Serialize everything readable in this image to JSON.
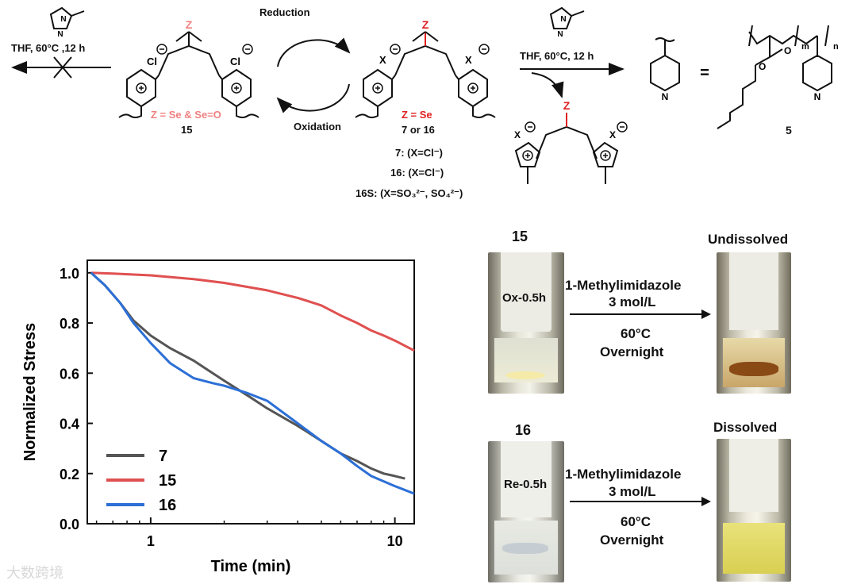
{
  "scheme": {
    "top_left_cond": "THF, 60°C ,12 h",
    "top_right_cond": "THF, 60°C, 12 h",
    "reduction": "Reduction",
    "oxidation": "Oxidation",
    "left_z": "Z = Se & Se=O",
    "left_num": "15",
    "center_z": "Z = Se",
    "center_num": "7 or 16",
    "def_7": "7: (X=Cl⁻)",
    "def_16": "16: (X=Cl⁻)",
    "def_16s": "16S: (X=SO₃²⁻, SO₄²⁻)",
    "equals": "=",
    "polymer_num": "5",
    "poly_m": "m",
    "poly_n": "n",
    "ring_atom_z": "Z",
    "ring_atom_cl": "Cl",
    "ring_atom_x": "X",
    "ring_atom_n": "N"
  },
  "photos": {
    "top_label": "15",
    "top_result": "Undissolved",
    "top_tube_text": "Ox-0.5h",
    "bottom_label": "16",
    "bottom_result": "Dissolved",
    "bottom_tube_text": "Re-0.5h",
    "reagent": "1-Methylimidazole",
    "conc": "3 mol/L",
    "temp": "60°C",
    "time": "Overnight"
  },
  "watermark": "大数跨境",
  "chart_data": {
    "type": "line",
    "xlabel": "Time (min)",
    "ylabel": "Normalized Stress",
    "xscale": "log",
    "xlim": [
      0.55,
      12
    ],
    "ylim": [
      0.0,
      1.05
    ],
    "xticks": [
      1,
      10
    ],
    "yticks": [
      0.0,
      0.2,
      0.4,
      0.6,
      0.8,
      1.0
    ],
    "legend_position": "bottom-left",
    "series": [
      {
        "name": "7",
        "color": "#555555",
        "x": [
          0.57,
          0.65,
          0.75,
          0.85,
          1.0,
          1.2,
          1.5,
          2.0,
          2.5,
          3.0,
          4.0,
          5.0,
          6.0,
          7.0,
          8.0,
          9.0,
          10.0,
          11.0
        ],
        "y": [
          1.0,
          0.95,
          0.88,
          0.81,
          0.75,
          0.7,
          0.65,
          0.57,
          0.51,
          0.46,
          0.39,
          0.33,
          0.28,
          0.25,
          0.22,
          0.2,
          0.19,
          0.18
        ]
      },
      {
        "name": "15",
        "color": "#e05050",
        "x": [
          0.57,
          0.7,
          1.0,
          1.5,
          2.0,
          3.0,
          4.0,
          5.0,
          6.0,
          7.0,
          8.0,
          9.0,
          10.0,
          12.0
        ],
        "y": [
          1.0,
          0.997,
          0.99,
          0.975,
          0.96,
          0.93,
          0.9,
          0.87,
          0.83,
          0.8,
          0.77,
          0.75,
          0.73,
          0.69
        ]
      },
      {
        "name": "16",
        "color": "#2c6fd6",
        "x": [
          0.57,
          0.65,
          0.75,
          0.85,
          1.0,
          1.2,
          1.5,
          1.8,
          2.0,
          2.5,
          3.0,
          4.0,
          5.0,
          6.0,
          7.0,
          8.0,
          10.0,
          12.0
        ],
        "y": [
          1.0,
          0.95,
          0.88,
          0.8,
          0.72,
          0.64,
          0.58,
          0.56,
          0.55,
          0.52,
          0.49,
          0.4,
          0.33,
          0.28,
          0.23,
          0.19,
          0.15,
          0.12
        ]
      }
    ]
  }
}
